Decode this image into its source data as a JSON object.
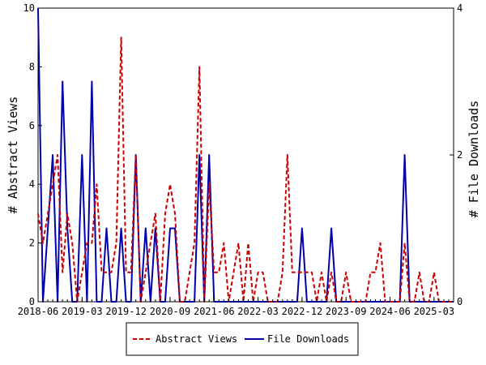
{
  "chart_data": {
    "type": "line",
    "x_ticks": [
      "2018-06",
      "2019-03",
      "2019-12",
      "2020-09",
      "2021-06",
      "2022-03",
      "2022-12",
      "2023-09",
      "2024-06",
      "2025-03"
    ],
    "y_left": {
      "label": "# Abstract Views",
      "ylim": [
        0,
        10
      ],
      "ticks": [
        "0",
        "2",
        "4",
        "6",
        "8",
        "10"
      ]
    },
    "y_right": {
      "label": "# File Downloads",
      "ylim": [
        0,
        4
      ],
      "ticks": [
        "0",
        "2",
        "4"
      ]
    },
    "legend_position": "bottom",
    "grid": false,
    "series": [
      {
        "name": "Abstract Views",
        "axis": "left",
        "color": "#cc0000",
        "dash": true,
        "points": [
          [
            "2018-06",
            3
          ],
          [
            "2018-07",
            2
          ],
          [
            "2018-08",
            3
          ],
          [
            "2018-09",
            4
          ],
          [
            "2018-10",
            5
          ],
          [
            "2018-11",
            1
          ],
          [
            "2018-12",
            3
          ],
          [
            "2019-01",
            2
          ],
          [
            "2019-02",
            0
          ],
          [
            "2019-03",
            1
          ],
          [
            "2019-04",
            2
          ],
          [
            "2019-05",
            2
          ],
          [
            "2019-06",
            4
          ],
          [
            "2019-07",
            1
          ],
          [
            "2019-08",
            1
          ],
          [
            "2019-09",
            1
          ],
          [
            "2019-10",
            2
          ],
          [
            "2019-11",
            9
          ],
          [
            "2019-12",
            1
          ],
          [
            "2020-01",
            1
          ],
          [
            "2020-02",
            5
          ],
          [
            "2020-03",
            0
          ],
          [
            "2020-04",
            1
          ],
          [
            "2020-05",
            2
          ],
          [
            "2020-06",
            3
          ],
          [
            "2020-07",
            0
          ],
          [
            "2020-08",
            3
          ],
          [
            "2020-09",
            4
          ],
          [
            "2020-10",
            3
          ],
          [
            "2020-11",
            0
          ],
          [
            "2020-12",
            0
          ],
          [
            "2021-01",
            1
          ],
          [
            "2021-02",
            2
          ],
          [
            "2021-03",
            8
          ],
          [
            "2021-04",
            0
          ],
          [
            "2021-05",
            4
          ],
          [
            "2021-06",
            1
          ],
          [
            "2021-07",
            1
          ],
          [
            "2021-08",
            2
          ],
          [
            "2021-09",
            0
          ],
          [
            "2021-10",
            1
          ],
          [
            "2021-11",
            2
          ],
          [
            "2021-12",
            0
          ],
          [
            "2022-01",
            2
          ],
          [
            "2022-02",
            0
          ],
          [
            "2022-03",
            1
          ],
          [
            "2022-04",
            1
          ],
          [
            "2022-05",
            0
          ],
          [
            "2022-06",
            0
          ],
          [
            "2022-07",
            0
          ],
          [
            "2022-08",
            1
          ],
          [
            "2022-09",
            5
          ],
          [
            "2022-10",
            1
          ],
          [
            "2022-11",
            1
          ],
          [
            "2022-12",
            1
          ],
          [
            "2023-01",
            1
          ],
          [
            "2023-02",
            1
          ],
          [
            "2023-03",
            0
          ],
          [
            "2023-04",
            1
          ],
          [
            "2023-05",
            0
          ],
          [
            "2023-06",
            1
          ],
          [
            "2023-07",
            0
          ],
          [
            "2023-08",
            0
          ],
          [
            "2023-09",
            1
          ],
          [
            "2023-10",
            0
          ],
          [
            "2023-11",
            0
          ],
          [
            "2023-12",
            0
          ],
          [
            "2024-01",
            0
          ],
          [
            "2024-02",
            1
          ],
          [
            "2024-03",
            1
          ],
          [
            "2024-04",
            2
          ],
          [
            "2024-05",
            0
          ],
          [
            "2024-06",
            0
          ],
          [
            "2024-07",
            0
          ],
          [
            "2024-08",
            0
          ],
          [
            "2024-09",
            2
          ],
          [
            "2024-10",
            0
          ],
          [
            "2024-11",
            0
          ],
          [
            "2024-12",
            1
          ],
          [
            "2025-01",
            0
          ],
          [
            "2025-02",
            0
          ],
          [
            "2025-03",
            1
          ],
          [
            "2025-04",
            0
          ],
          [
            "2025-05",
            0
          ],
          [
            "2025-06",
            0
          ],
          [
            "2025-07",
            0
          ]
        ]
      },
      {
        "name": "File Downloads",
        "axis": "right",
        "color": "#0000aa",
        "dash": false,
        "points": [
          [
            "2018-06",
            4
          ],
          [
            "2018-07",
            0
          ],
          [
            "2018-08",
            1
          ],
          [
            "2018-09",
            2
          ],
          [
            "2018-10",
            0
          ],
          [
            "2018-11",
            3
          ],
          [
            "2018-12",
            1
          ],
          [
            "2019-01",
            0
          ],
          [
            "2019-02",
            0
          ],
          [
            "2019-03",
            2
          ],
          [
            "2019-04",
            0
          ],
          [
            "2019-05",
            3
          ],
          [
            "2019-06",
            0
          ],
          [
            "2019-07",
            0
          ],
          [
            "2019-08",
            1
          ],
          [
            "2019-09",
            0
          ],
          [
            "2019-10",
            0
          ],
          [
            "2019-11",
            1
          ],
          [
            "2019-12",
            0
          ],
          [
            "2020-01",
            0
          ],
          [
            "2020-02",
            2
          ],
          [
            "2020-03",
            0
          ],
          [
            "2020-04",
            1
          ],
          [
            "2020-05",
            0
          ],
          [
            "2020-06",
            1
          ],
          [
            "2020-07",
            0
          ],
          [
            "2020-08",
            0
          ],
          [
            "2020-09",
            1
          ],
          [
            "2020-10",
            1
          ],
          [
            "2020-11",
            0
          ],
          [
            "2020-12",
            0
          ],
          [
            "2021-01",
            0
          ],
          [
            "2021-02",
            0
          ],
          [
            "2021-03",
            2
          ],
          [
            "2021-04",
            0
          ],
          [
            "2021-05",
            2
          ],
          [
            "2021-06",
            0
          ],
          [
            "2021-07",
            0
          ],
          [
            "2021-08",
            0
          ],
          [
            "2021-09",
            0
          ],
          [
            "2021-10",
            0
          ],
          [
            "2021-11",
            0
          ],
          [
            "2021-12",
            0
          ],
          [
            "2022-01",
            0
          ],
          [
            "2022-02",
            0
          ],
          [
            "2022-03",
            0
          ],
          [
            "2022-04",
            0
          ],
          [
            "2022-05",
            0
          ],
          [
            "2022-06",
            0
          ],
          [
            "2022-07",
            0
          ],
          [
            "2022-08",
            0
          ],
          [
            "2022-09",
            0
          ],
          [
            "2022-10",
            0
          ],
          [
            "2022-11",
            0
          ],
          [
            "2022-12",
            1
          ],
          [
            "2023-01",
            0
          ],
          [
            "2023-02",
            0
          ],
          [
            "2023-03",
            0
          ],
          [
            "2023-04",
            0
          ],
          [
            "2023-05",
            0
          ],
          [
            "2023-06",
            1
          ],
          [
            "2023-07",
            0
          ],
          [
            "2023-08",
            0
          ],
          [
            "2023-09",
            0
          ],
          [
            "2023-10",
            0
          ],
          [
            "2023-11",
            0
          ],
          [
            "2023-12",
            0
          ],
          [
            "2024-01",
            0
          ],
          [
            "2024-02",
            0
          ],
          [
            "2024-03",
            0
          ],
          [
            "2024-04",
            0
          ],
          [
            "2024-05",
            0
          ],
          [
            "2024-06",
            0
          ],
          [
            "2024-07",
            0
          ],
          [
            "2024-08",
            0
          ],
          [
            "2024-09",
            2
          ],
          [
            "2024-10",
            0
          ],
          [
            "2024-11",
            0
          ],
          [
            "2024-12",
            0
          ],
          [
            "2025-01",
            0
          ],
          [
            "2025-02",
            0
          ],
          [
            "2025-03",
            0
          ],
          [
            "2025-04",
            0
          ],
          [
            "2025-05",
            0
          ],
          [
            "2025-06",
            0
          ],
          [
            "2025-07",
            0
          ]
        ]
      }
    ]
  }
}
